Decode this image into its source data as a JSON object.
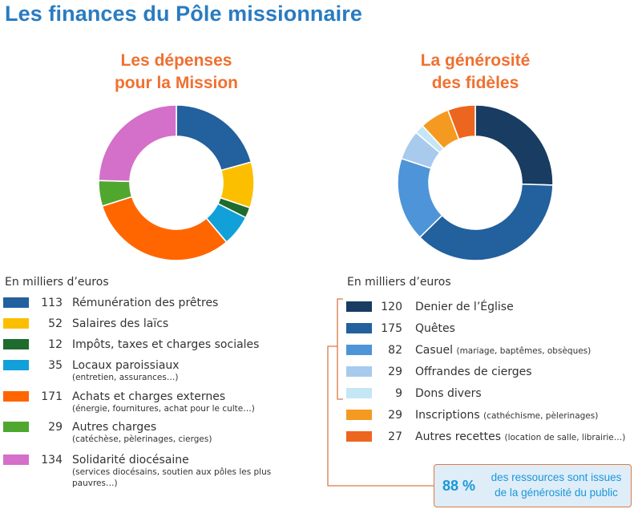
{
  "header": {
    "title": "Les finances du Pôle missionnaire"
  },
  "colors": {
    "title": "#2a7bc1",
    "chart_title": "#f07030",
    "callout_text": "#1a97d9",
    "bracket": "#d97a45"
  },
  "chart_data": [
    {
      "type": "pie",
      "variant": "donut",
      "title_lines": [
        "Les dépenses",
        "pour la Mission"
      ],
      "unit": "En milliers d’euros",
      "start": "top",
      "direction": "clockwise",
      "slices": [
        {
          "label": "Rémunération des prêtres",
          "sub": "",
          "value": 113,
          "color": "#22609e"
        },
        {
          "label": "Salaires des laïcs",
          "sub": "",
          "value": 52,
          "color": "#fbbf00"
        },
        {
          "label": "Impôts, taxes et charges sociales",
          "sub": "",
          "value": 12,
          "color": "#1e6b2e"
        },
        {
          "label": "Locaux paroissiaux",
          "sub": "(entretien, assurances…)",
          "value": 35,
          "color": "#12a0d8"
        },
        {
          "label": "Achats et charges externes",
          "sub": "(énergie, fournitures, achat pour le culte…)",
          "value": 171,
          "color": "#ff6600"
        },
        {
          "label": "Autres charges",
          "sub": "(catéchèse, pèlerinages, cierges)",
          "value": 29,
          "color": "#4fa72f"
        },
        {
          "label": "Solidarité diocésaine",
          "sub": "(services diocésains, soutien aux pôles les plus pauvres…)",
          "value": 134,
          "color": "#d46fca"
        }
      ]
    },
    {
      "type": "pie",
      "variant": "donut",
      "title_lines": [
        "La générosité",
        "des fidèles"
      ],
      "unit": "En milliers d’euros",
      "start": "top",
      "direction": "clockwise",
      "slices": [
        {
          "label": "Denier de l’Église",
          "sub": "",
          "value": 120,
          "color": "#183c62"
        },
        {
          "label": "Quêtes",
          "sub": "",
          "value": 175,
          "color": "#22609e"
        },
        {
          "label": "Casuel",
          "sub": "(mariage, baptêmes, obsèques)",
          "value": 82,
          "color": "#4d94d8"
        },
        {
          "label": "Offrandes de cierges",
          "sub": "",
          "value": 29,
          "color": "#a8caec"
        },
        {
          "label": "Dons divers",
          "sub": "",
          "value": 9,
          "color": "#c4e6f5"
        },
        {
          "label": "Inscriptions",
          "sub": "(cathéchisme, pèlerinages)",
          "value": 29,
          "color": "#f59a20"
        },
        {
          "label": "Autres recettes",
          "sub": "(location de salle, librairie…)",
          "value": 27,
          "color": "#ec6620"
        }
      ],
      "callout": {
        "percent": "88 %",
        "line1": "des ressources sont issues",
        "line2": "de la générosité du public"
      }
    }
  ]
}
